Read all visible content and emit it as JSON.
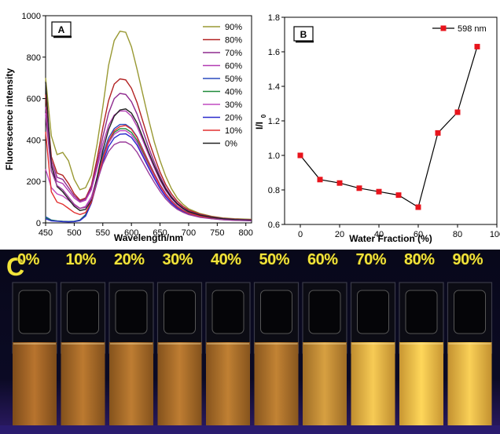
{
  "panel_a": {
    "letter": "A",
    "chart_data": {
      "type": "line",
      "xlabel": "Wavelength/nm",
      "ylabel": "Fluorescence intensity",
      "xlim": [
        450,
        810
      ],
      "ylim": [
        0,
        1000
      ],
      "x_ticks": [
        450,
        500,
        550,
        600,
        650,
        700,
        750,
        800
      ],
      "y_ticks": [
        0,
        200,
        400,
        600,
        800,
        1000
      ],
      "legend_position": "top-right",
      "x": [
        450,
        460,
        470,
        480,
        490,
        500,
        510,
        520,
        530,
        540,
        550,
        560,
        570,
        580,
        590,
        600,
        610,
        620,
        630,
        640,
        650,
        660,
        670,
        680,
        690,
        700,
        720,
        740,
        760,
        780,
        800,
        810
      ],
      "series": [
        {
          "name": "90%",
          "color": "#999933",
          "values": [
            700,
            420,
            330,
            340,
            300,
            210,
            160,
            170,
            230,
            380,
            560,
            760,
            880,
            925,
            920,
            850,
            740,
            620,
            500,
            390,
            300,
            225,
            165,
            120,
            90,
            68,
            45,
            32,
            24,
            20,
            18,
            17
          ]
        },
        {
          "name": "80%",
          "color": "#b22222",
          "values": [
            620,
            320,
            240,
            230,
            190,
            140,
            110,
            120,
            180,
            310,
            460,
            590,
            670,
            695,
            690,
            650,
            580,
            490,
            400,
            320,
            245,
            185,
            140,
            105,
            80,
            62,
            42,
            30,
            22,
            18,
            16,
            15
          ]
        },
        {
          "name": "70%",
          "color": "#8e2a8e",
          "values": [
            560,
            300,
            220,
            210,
            170,
            130,
            105,
            115,
            170,
            285,
            415,
            530,
            600,
            625,
            620,
            585,
            525,
            445,
            365,
            292,
            225,
            170,
            128,
            96,
            73,
            57,
            39,
            28,
            21,
            17,
            15,
            14
          ]
        },
        {
          "name": "60%",
          "color": "#b23bb2",
          "values": [
            530,
            280,
            200,
            190,
            155,
            120,
            100,
            110,
            160,
            265,
            380,
            470,
            520,
            540,
            540,
            515,
            465,
            398,
            330,
            265,
            205,
            156,
            118,
            89,
            68,
            53,
            36,
            26,
            20,
            16,
            14,
            13
          ]
        },
        {
          "name": "50%",
          "color": "#2a4bbf",
          "values": [
            30,
            14,
            10,
            8,
            7,
            8,
            14,
            40,
            110,
            220,
            330,
            410,
            455,
            475,
            475,
            455,
            415,
            355,
            295,
            238,
            185,
            141,
            107,
            80,
            61,
            48,
            33,
            24,
            18,
            15,
            13,
            12
          ]
        },
        {
          "name": "40%",
          "color": "#1f8a3a",
          "values": [
            25,
            12,
            9,
            7,
            6,
            7,
            13,
            38,
            105,
            210,
            315,
            393,
            437,
            455,
            455,
            437,
            398,
            341,
            283,
            228,
            177,
            135,
            102,
            77,
            59,
            46,
            31,
            23,
            17,
            14,
            12,
            11
          ]
        },
        {
          "name": "30%",
          "color": "#c04bc0",
          "values": [
            260,
            170,
            140,
            130,
            110,
            85,
            70,
            80,
            125,
            215,
            310,
            385,
            428,
            445,
            445,
            425,
            387,
            332,
            275,
            222,
            172,
            131,
            99,
            75,
            57,
            44,
            30,
            22,
            16,
            13,
            12,
            11
          ]
        },
        {
          "name": "20%",
          "color": "#2a2acc",
          "values": [
            20,
            10,
            8,
            6,
            5,
            6,
            11,
            33,
            95,
            195,
            295,
            368,
            410,
            428,
            430,
            412,
            375,
            321,
            266,
            214,
            166,
            126,
            96,
            72,
            55,
            43,
            29,
            21,
            16,
            13,
            11,
            10
          ]
        },
        {
          "name": "10%",
          "color": "#e23030",
          "values": [
            440,
            150,
            100,
            90,
            70,
            50,
            40,
            50,
            100,
            200,
            310,
            395,
            445,
            465,
            470,
            452,
            412,
            352,
            292,
            235,
            182,
            139,
            105,
            79,
            60,
            47,
            32,
            23,
            17,
            14,
            12,
            11
          ]
        },
        {
          "name": "0%",
          "color": "#222222",
          "values": [
            680,
            280,
            175,
            150,
            115,
            80,
            60,
            65,
            110,
            220,
            350,
            450,
            515,
            545,
            550,
            530,
            482,
            412,
            342,
            275,
            213,
            162,
            122,
            92,
            70,
            54,
            37,
            27,
            20,
            16,
            14,
            13
          ]
        }
      ],
      "extra_series": [
        {
          "color": "#9b3c9b",
          "values": [
            520,
            250,
            180,
            160,
            125,
            90,
            70,
            75,
            115,
            200,
            285,
            345,
            378,
            390,
            390,
            375,
            341,
            292,
            242,
            195,
            152,
            116,
            88,
            66,
            51,
            40,
            27,
            20,
            15,
            12,
            11,
            10
          ]
        }
      ]
    }
  },
  "panel_b": {
    "letter": "B",
    "chart_data": {
      "type": "line",
      "xlabel": "Water Fraction (%)",
      "ylabel": "I/I",
      "ylabel_sub": "0",
      "xlim": [
        -8,
        100
      ],
      "ylim": [
        0.6,
        1.8
      ],
      "x_ticks": [
        0,
        20,
        40,
        60,
        80,
        100
      ],
      "y_ticks": [
        0.6,
        0.8,
        1.0,
        1.2,
        1.4,
        1.6,
        1.8
      ],
      "legend_position": "top-right",
      "series": [
        {
          "name": "598 nm",
          "color": "#e8141c",
          "x": [
            0,
            10,
            20,
            30,
            40,
            50,
            60,
            70,
            80,
            90
          ],
          "values": [
            1.0,
            0.86,
            0.84,
            0.81,
            0.79,
            0.77,
            0.7,
            1.13,
            1.25,
            1.63
          ]
        }
      ]
    }
  },
  "panel_c": {
    "letter": "C",
    "labels": [
      "0%",
      "10%",
      "20%",
      "30%",
      "40%",
      "50%",
      "60%",
      "70%",
      "80%",
      "90%"
    ],
    "glow_levels": [
      0.32,
      0.36,
      0.38,
      0.38,
      0.4,
      0.42,
      0.62,
      0.92,
      1.0,
      0.95
    ],
    "label_color": "#f2e43a"
  }
}
